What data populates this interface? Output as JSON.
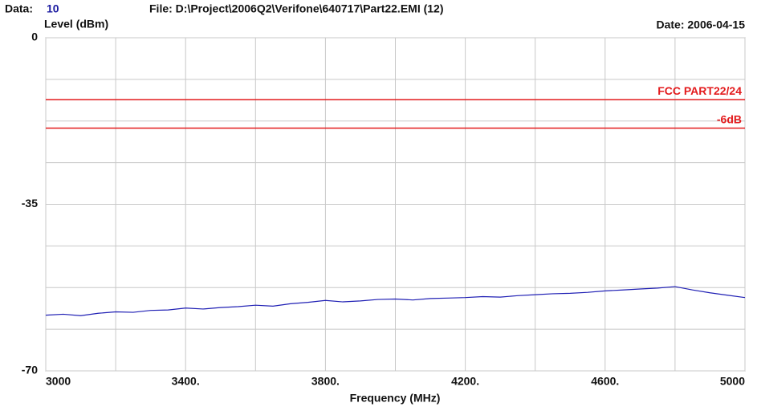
{
  "header": {
    "data_label": "Data:",
    "data_value": "10",
    "file": "File: D:\\Project\\2006Q2\\Verifone\\640717\\Part22.EMI  (12)",
    "date": "Date: 2006-04-15"
  },
  "chart_data": {
    "type": "line",
    "ylabel": "Level (dBm)",
    "xlabel": "Frequency (MHz)",
    "xlim": [
      3000,
      5000
    ],
    "ylim": [
      -70,
      0
    ],
    "xticks": [
      3000,
      {
        "value": 3400,
        "label": "3400."
      },
      {
        "value": 3800,
        "label": "3800."
      },
      {
        "value": 4200,
        "label": "4200."
      },
      {
        "value": 4600,
        "label": "4600."
      },
      5000
    ],
    "yticks": [
      0,
      -35,
      -70
    ],
    "xgrid": [
      3000,
      3200,
      3400,
      3600,
      3800,
      4000,
      4200,
      4400,
      4600,
      4800,
      5000
    ],
    "ygrid": [
      0,
      -8.75,
      -17.5,
      -26.25,
      -35,
      -43.75,
      -52.5,
      -61.25,
      -70
    ],
    "grid": true,
    "limit_lines": [
      {
        "name": "FCC PART22/24",
        "value": -13,
        "color": "#e31a1c"
      },
      {
        "name": "-6dB",
        "value": -19,
        "color": "#e31a1c"
      }
    ],
    "x": [
      3000,
      3050,
      3100,
      3150,
      3200,
      3250,
      3300,
      3350,
      3400,
      3450,
      3500,
      3550,
      3600,
      3650,
      3700,
      3750,
      3800,
      3850,
      3900,
      3950,
      4000,
      4050,
      4100,
      4150,
      4200,
      4250,
      4300,
      4350,
      4400,
      4450,
      4500,
      4550,
      4600,
      4650,
      4700,
      4750,
      4800,
      4850,
      4900,
      4950,
      5000
    ],
    "series": [
      {
        "color": "#1f1fb4",
        "values": [
          -58.3,
          -58.1,
          -58.4,
          -57.9,
          -57.6,
          -57.7,
          -57.3,
          -57.2,
          -56.8,
          -57.0,
          -56.7,
          -56.5,
          -56.2,
          -56.4,
          -55.9,
          -55.6,
          -55.2,
          -55.5,
          -55.3,
          -55.0,
          -54.9,
          -55.1,
          -54.8,
          -54.7,
          -54.6,
          -54.4,
          -54.5,
          -54.2,
          -54.0,
          -53.8,
          -53.7,
          -53.5,
          -53.2,
          -53.0,
          -52.8,
          -52.6,
          -52.3,
          -53.0,
          -53.6,
          -54.1,
          -54.6
        ]
      }
    ]
  }
}
